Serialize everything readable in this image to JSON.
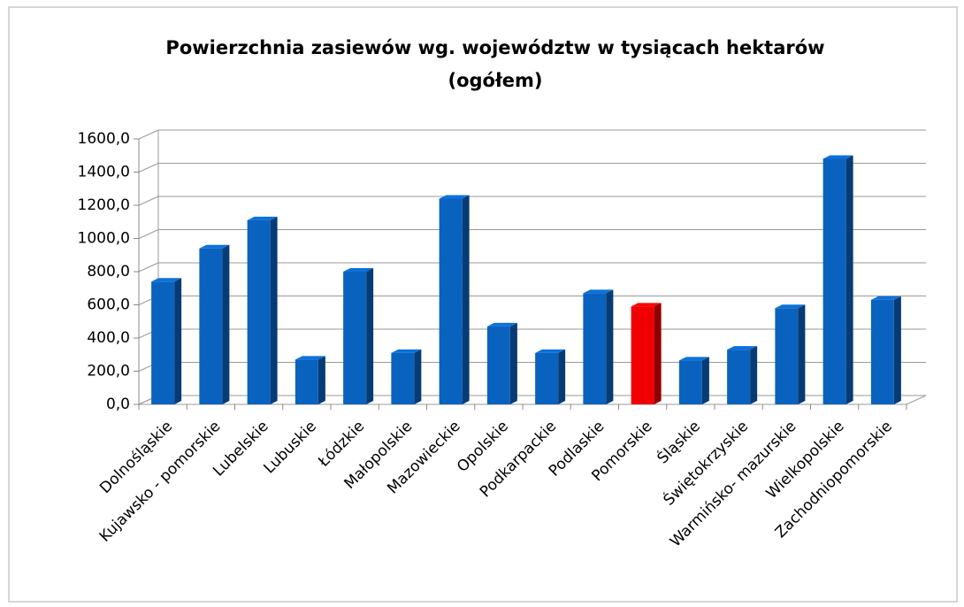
{
  "chart_data": {
    "type": "bar3d",
    "title": [
      "Powierzchnia zasiewów wg. województw w tysiącach hektarów",
      "(ogółem)"
    ],
    "categories": [
      "Dolnośląskie",
      "Kujawsko - pomorskie",
      "Lubelskie",
      "Lubuskie",
      "Łódzkie",
      "Małopolskie",
      "Mazowieckie",
      "Opolskie",
      "Podkarpackie",
      "Podlaskie",
      "Pomorskie",
      "Śląskie",
      "Świętokrzyskie",
      "Warmińsko- mazurskie",
      "Wielkopolskie",
      "Zachodniopomorskie"
    ],
    "values": [
      740,
      940,
      1110,
      270,
      800,
      310,
      1240,
      470,
      310,
      670,
      590,
      265,
      330,
      580,
      1480,
      630
    ],
    "colors": [
      "#0a62bf",
      "#0a62bf",
      "#0a62bf",
      "#0a62bf",
      "#0a62bf",
      "#0a62bf",
      "#0a62bf",
      "#0a62bf",
      "#0a62bf",
      "#0a62bf",
      "#f00000",
      "#0a62bf",
      "#0a62bf",
      "#0a62bf",
      "#0a62bf",
      "#0a62bf"
    ],
    "ylim": [
      0,
      1600
    ],
    "yticks": [
      {
        "value": 0,
        "label": "0,0"
      },
      {
        "value": 200,
        "label": "200,0"
      },
      {
        "value": 400,
        "label": "400,0"
      },
      {
        "value": 600,
        "label": "600,0"
      },
      {
        "value": 800,
        "label": "800,0"
      },
      {
        "value": 1000,
        "label": "1000,0"
      },
      {
        "value": 1200,
        "label": "1200,0"
      },
      {
        "value": 1400,
        "label": "1400,0"
      },
      {
        "value": 1600,
        "label": "1600,0"
      }
    ],
    "grid": true
  }
}
